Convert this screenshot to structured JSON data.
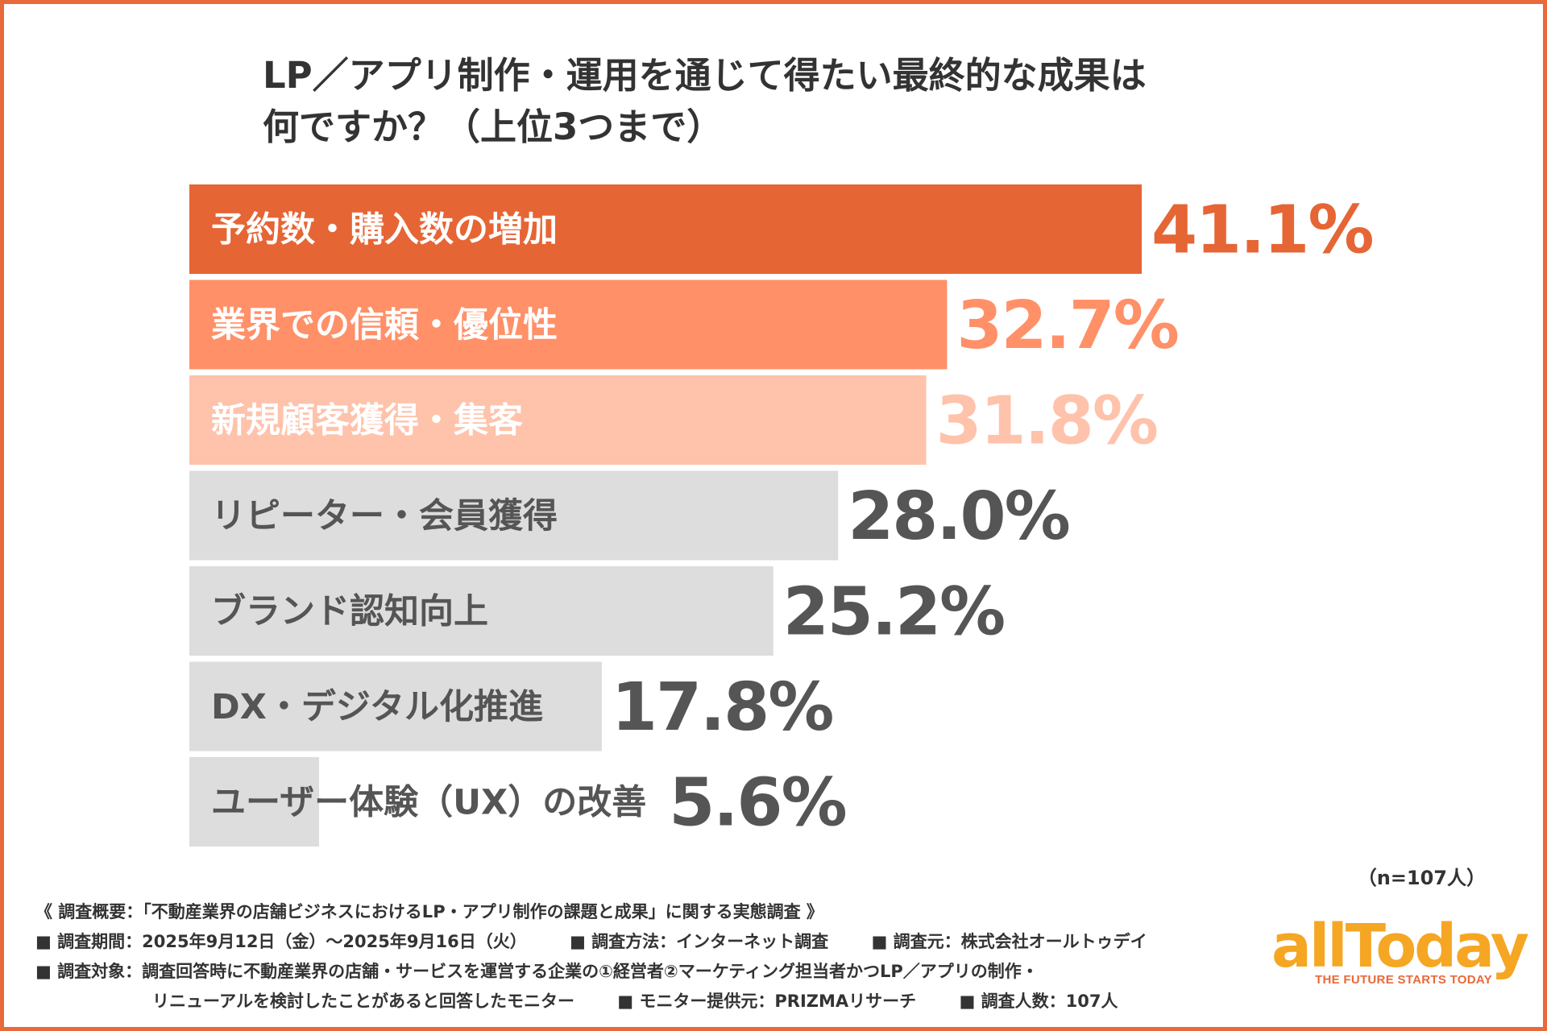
{
  "title": {
    "line1": "LP／アプリ制作・運用を通じて得たい最終的な成果は",
    "line2": "何ですか？（上位3つまで）"
  },
  "colors": {
    "frame": "#E8693A",
    "bar_top1": "#E66535",
    "bar_top2": "#FF9068",
    "bar_top3": "#FFC2AB",
    "bar_gray": "#DDDDDD",
    "pct_top1": "#E66535",
    "pct_top2": "#FF9068",
    "pct_top3": "#FFC2AB",
    "pct_gray": "#555555",
    "text_gray": "#555555",
    "text_white": "#ffffff"
  },
  "chart_data": {
    "type": "bar",
    "orientation": "horizontal",
    "categories": [
      "予約数・購入数の増加",
      "業界での信頼・優位性",
      "新規顧客獲得・集客",
      "リピーター・会員獲得",
      "ブランド認知向上",
      "DX・デジタル化推進",
      "ユーザー体験（UX）の改善"
    ],
    "values": [
      41.1,
      32.7,
      31.8,
      28.0,
      25.2,
      17.8,
      5.6
    ],
    "value_labels": [
      "41.1%",
      "32.7%",
      "31.8%",
      "28.0%",
      "25.2%",
      "17.8%",
      "5.6%"
    ],
    "unit": "%",
    "xlim": [
      0,
      41.1
    ],
    "grid": false,
    "legend": "none"
  },
  "sample_size": "（n=107人）",
  "notes": {
    "overview": "《 調査概要：「不動産業界の店舗ビジネスにおけるLP・アプリ制作の課題と成果」に関する実態調査 》",
    "period": "■ 調査期間：2025年9月12日（金）〜2025年9月16日（火）",
    "method": "■ 調査方法：インターネット調査",
    "organizer": "■ 調査元：株式会社オールトゥデイ",
    "target": "■ 調査対象：調査回答時に不動産業界の店舗・サービスを運営する企業の①経営者②マーケティング担当者かつLP／アプリの制作・",
    "target_cont": "リニューアルを検討したことがあると回答したモニター",
    "provider": "■ モニター提供元：PRIZMAリサーチ",
    "respondents": "■ 調査人数：107人"
  },
  "logo": {
    "wordmark": "allToday",
    "tagline": "THE FUTURE STARTS TODAY"
  }
}
